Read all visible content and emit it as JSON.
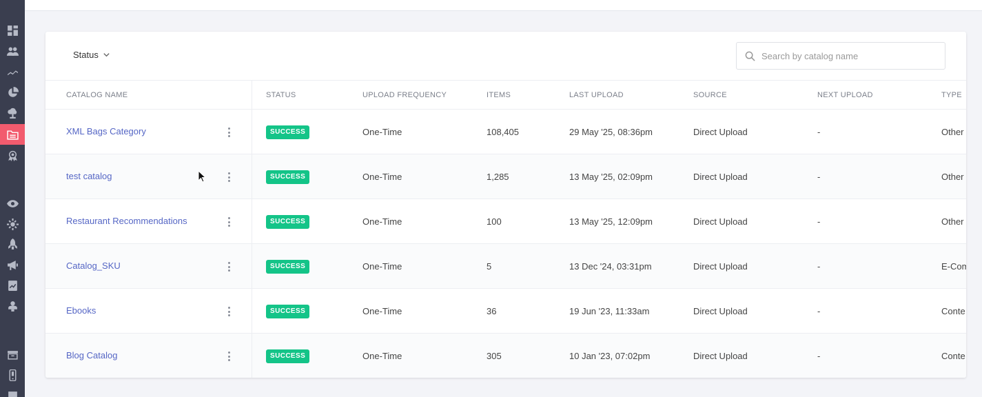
{
  "sidebar": {
    "icons": [
      {
        "name": "dashboard-icon",
        "active": false
      },
      {
        "name": "users-icon",
        "active": false
      },
      {
        "name": "analytics-icon",
        "active": false
      },
      {
        "name": "pie-chart-icon",
        "active": false
      },
      {
        "name": "cloud-icon",
        "active": false
      },
      {
        "name": "catalog-icon",
        "active": true
      },
      {
        "name": "badge-icon",
        "active": false
      },
      {
        "name": "eye-icon",
        "active": false
      },
      {
        "name": "settings-icon",
        "active": false
      },
      {
        "name": "rocket-icon",
        "active": false
      },
      {
        "name": "megaphone-icon",
        "active": false
      },
      {
        "name": "report-icon",
        "active": false
      },
      {
        "name": "plugin-icon",
        "active": false
      },
      {
        "name": "archive-icon",
        "active": false
      },
      {
        "name": "mobile-icon",
        "active": false
      },
      {
        "name": "edit-icon",
        "active": false
      }
    ],
    "active_color": "#f25b6e"
  },
  "filter": {
    "status_label": "Status"
  },
  "search": {
    "placeholder": "Search by catalog name",
    "value": ""
  },
  "table": {
    "headers": [
      "CATALOG NAME",
      "STATUS",
      "UPLOAD FREQUENCY",
      "ITEMS",
      "LAST UPLOAD",
      "SOURCE",
      "NEXT UPLOAD",
      "TYPE"
    ],
    "rows": [
      {
        "name": "XML Bags Category",
        "status": "SUCCESS",
        "frequency": "One-Time",
        "items": "108,405",
        "last_upload": "29 May '25, 08:36pm",
        "source": "Direct Upload",
        "next_upload": "-",
        "type": "Other"
      },
      {
        "name": "test catalog",
        "status": "SUCCESS",
        "frequency": "One-Time",
        "items": "1,285",
        "last_upload": "13 May '25, 02:09pm",
        "source": "Direct Upload",
        "next_upload": "-",
        "type": "Other"
      },
      {
        "name": "Restaurant Recommendations",
        "status": "SUCCESS",
        "frequency": "One-Time",
        "items": "100",
        "last_upload": "13 May '25, 12:09pm",
        "source": "Direct Upload",
        "next_upload": "-",
        "type": "Other"
      },
      {
        "name": "Catalog_SKU",
        "status": "SUCCESS",
        "frequency": "One-Time",
        "items": "5",
        "last_upload": "13 Dec '24, 03:31pm",
        "source": "Direct Upload",
        "next_upload": "-",
        "type": "E-Com"
      },
      {
        "name": "Ebooks",
        "status": "SUCCESS",
        "frequency": "One-Time",
        "items": "36",
        "last_upload": "19 Jun '23, 11:33am",
        "source": "Direct Upload",
        "next_upload": "-",
        "type": "Conte"
      },
      {
        "name": "Blog Catalog",
        "status": "SUCCESS",
        "frequency": "One-Time",
        "items": "305",
        "last_upload": "10 Jan '23, 07:02pm",
        "source": "Direct Upload",
        "next_upload": "-",
        "type": "Conte"
      }
    ]
  },
  "colors": {
    "link": "#5566c5",
    "success": "#14c488",
    "sidebar_bg": "#3a3e4f"
  }
}
